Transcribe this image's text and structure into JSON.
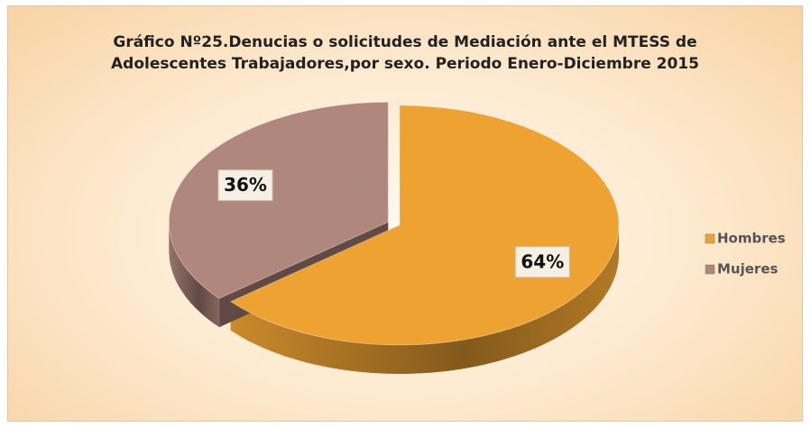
{
  "chart_data": {
    "type": "pie",
    "title": "Gráfico Nº25.Denucias o solicitudes de Mediación ante el MTESS de Adolescentes Trabajadores,por sexo. Periodo Enero-Diciembre 2015",
    "categories": [
      "Hombres",
      "Mujeres"
    ],
    "values": [
      64,
      36
    ],
    "value_labels": [
      "64%",
      "36%"
    ],
    "colors": [
      "#eea232",
      "#b0877c"
    ],
    "legend": "right"
  }
}
